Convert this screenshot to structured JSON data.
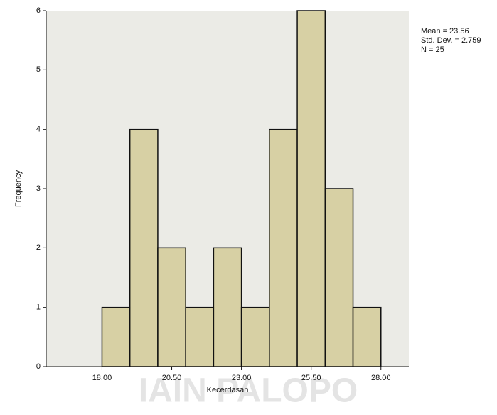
{
  "chart_data": {
    "type": "histogram",
    "xlabel": "Kecerdasan",
    "ylabel": "Frequency",
    "bins": [
      18,
      19,
      20,
      21,
      22,
      23,
      24,
      25,
      26,
      27,
      28
    ],
    "values": [
      1,
      4,
      2,
      1,
      2,
      1,
      4,
      6,
      3,
      1
    ],
    "color": "#d3cb98",
    "xlim": [
      16,
      29
    ],
    "xticks": [
      {
        "value": 18,
        "label": "18.00"
      },
      {
        "value": 20.5,
        "label": "20.50"
      },
      {
        "value": 23,
        "label": "23.00"
      },
      {
        "value": 25.5,
        "label": "25.50"
      },
      {
        "value": 28,
        "label": "28.00"
      }
    ],
    "ylim": [
      0,
      6
    ],
    "yticks": [
      0,
      1,
      2,
      3,
      4,
      5,
      6
    ],
    "stats": [
      "Mean = 23.56",
      "Std. Dev. = 2.759",
      "N = 25"
    ]
  },
  "watermark": "IAIN PALOPO"
}
